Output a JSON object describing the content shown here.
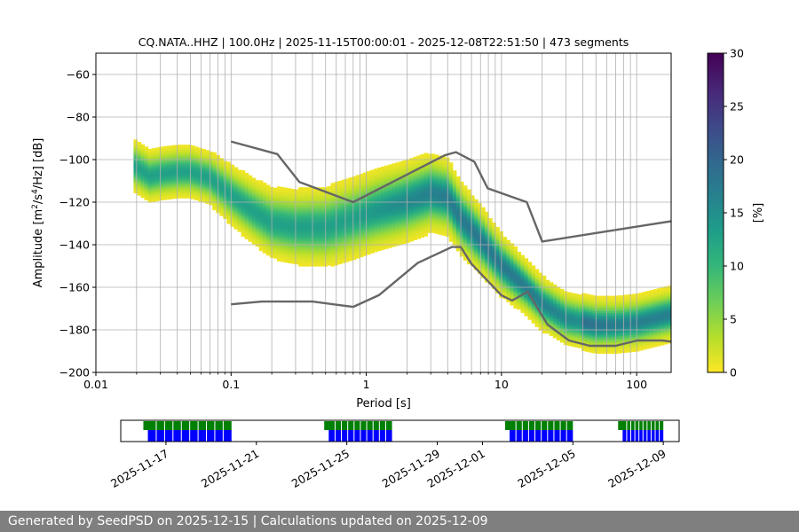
{
  "chart_data": [
    {
      "type": "heatmap",
      "title": "CQ.NATA..HHZ | 100.0Hz | 2025-11-15T00:00:01 - 2025-12-08T22:51:50 | 473 segments",
      "xlabel": "Period [s]",
      "ylabel_main": "Amplitude [m",
      "ylabel_sup1": "2",
      "ylabel_mid": "/s",
      "ylabel_sup2": "4",
      "ylabel_tail": "/Hz] [dB]",
      "x_scale": "log",
      "xlim": [
        0.01,
        180
      ],
      "ylim": [
        -200,
        -50
      ],
      "grid": true,
      "xticks": [
        0.01,
        0.1,
        1,
        10,
        100
      ],
      "xtick_labels": [
        "0.01",
        "0.1",
        "1",
        "10",
        "100"
      ],
      "yticks": [
        -200,
        -180,
        -160,
        -140,
        -120,
        -100,
        -80,
        -60
      ],
      "ytick_labels": [
        "−200",
        "−180",
        "−160",
        "−140",
        "−120",
        "−100",
        "−80",
        "−60"
      ],
      "density_mode": [
        [
          0.019,
          -103
        ],
        [
          0.025,
          -108
        ],
        [
          0.03,
          -107
        ],
        [
          0.04,
          -106
        ],
        [
          0.05,
          -106
        ],
        [
          0.07,
          -109
        ],
        [
          0.1,
          -117
        ],
        [
          0.15,
          -125
        ],
        [
          0.2,
          -130
        ],
        [
          0.3,
          -132
        ],
        [
          0.5,
          -132
        ],
        [
          0.8,
          -128
        ],
        [
          1.2,
          -124
        ],
        [
          2,
          -120
        ],
        [
          3,
          -116
        ],
        [
          4,
          -118
        ],
        [
          5,
          -128
        ],
        [
          7,
          -138
        ],
        [
          10,
          -150
        ],
        [
          15,
          -160
        ],
        [
          20,
          -168
        ],
        [
          30,
          -175
        ],
        [
          50,
          -178
        ],
        [
          70,
          -178
        ],
        [
          100,
          -177
        ],
        [
          180,
          -173
        ]
      ],
      "high_noise_model": {
        "name": "NHNM",
        "x": [
          0.1,
          0.22,
          0.32,
          0.8,
          3.8,
          4.6,
          6.3,
          7.9,
          15.4,
          20,
          354.8
        ],
        "y": [
          -91.5,
          -97.4,
          -110.5,
          -120,
          -98,
          -96.5,
          -101,
          -113.5,
          -120,
          -138.5,
          -126
        ]
      },
      "low_noise_model": {
        "name": "NLNM",
        "x": [
          0.1,
          0.17,
          0.4,
          0.8,
          1.24,
          2.4,
          4.3,
          5,
          6,
          10,
          12,
          15.6,
          21.9,
          31.6,
          45,
          70,
          101,
          154,
          328
        ],
        "y": [
          -168,
          -166.7,
          -166.7,
          -169.2,
          -163.7,
          -148.6,
          -141.1,
          -141.1,
          -149,
          -163.8,
          -166.2,
          -162.1,
          -177.5,
          -185,
          -187.5,
          -187.5,
          -185,
          -185,
          -187.5
        ]
      },
      "colorbar": {
        "label": "[%]",
        "ticks": [
          0,
          5,
          10,
          15,
          20,
          25,
          30
        ],
        "range": [
          0,
          30
        ],
        "colormap": "viridis_r",
        "colors": [
          "#fde725",
          "#b5de2b",
          "#6ece58",
          "#35b779",
          "#1f9e89",
          "#26828e",
          "#31688e",
          "#3e4989",
          "#482878",
          "#440154"
        ]
      }
    },
    {
      "type": "timeline",
      "xtick_labels": [
        "2025-11-17",
        "2025-11-21",
        "2025-11-25",
        "2025-11-29",
        "2025-12-01",
        "2025-12-05",
        "2025-12-09"
      ],
      "start_date": "2025-11-15",
      "end_date": "2025-12-09",
      "green_segments": [
        [
          "2025-11-16",
          "2025-11-19.9"
        ],
        [
          "2025-11-24",
          "2025-11-27"
        ],
        [
          "2025-12-02",
          "2025-12-05"
        ],
        [
          "2025-12-07",
          "2025-12-09"
        ]
      ],
      "blue_segments": [
        [
          "2025-11-16.2",
          "2025-11-19.9"
        ],
        [
          "2025-11-24.2",
          "2025-11-27"
        ],
        [
          "2025-12-02.2",
          "2025-12-05"
        ],
        [
          "2025-12-07.2",
          "2025-12-09"
        ]
      ],
      "colors": {
        "green": "#008000",
        "blue": "#0000ff"
      }
    }
  ],
  "footer": {
    "text": "Generated by SeedPSD on 2025-12-15 | Calculations updated on 2025-12-09"
  }
}
